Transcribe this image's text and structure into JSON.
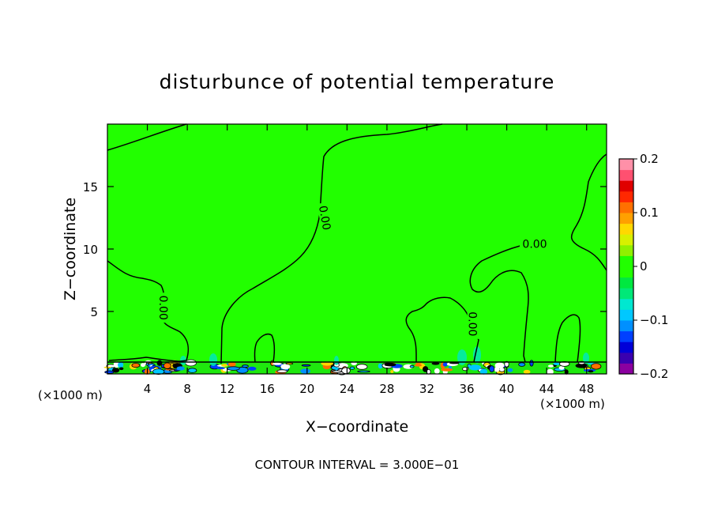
{
  "chart_data": {
    "type": "heatmap",
    "title": "disturbunce of potential temperature",
    "xlabel": "X−coordinate",
    "ylabel": "Z−coordinate",
    "x_unit_left": "(×1000 m)",
    "x_unit_right": "(×1000 m)",
    "x_ticks": [
      4,
      8,
      12,
      16,
      20,
      24,
      28,
      32,
      36,
      40,
      44,
      48
    ],
    "y_ticks": [
      5,
      10,
      15
    ],
    "xlim": [
      0,
      50
    ],
    "ylim": [
      0,
      20
    ],
    "colorbar": {
      "ticks": [
        0.2,
        0.1,
        0,
        -0.1,
        -0.2
      ],
      "tick_labels": [
        "0.2",
        "0.1",
        "0",
        "−0.1",
        "−0.2"
      ],
      "range": [
        -0.2,
        0.2
      ],
      "colors": [
        "#8b00a0",
        "#3a00b0",
        "#0000d8",
        "#0040ff",
        "#0090ff",
        "#00c8ff",
        "#00e8d0",
        "#00e878",
        "#00e840",
        "#22ff00",
        "#22ff00",
        "#90f000",
        "#d8f000",
        "#ffd800",
        "#ffa000",
        "#ff7000",
        "#ff2800",
        "#e00000",
        "#ff5070",
        "#ff90a8"
      ]
    },
    "contour_labels": [
      {
        "text": "0.00",
        "x": 21.8,
        "y": 12.5,
        "angle": 80
      },
      {
        "text": "0.00",
        "x": 42.8,
        "y": 10.4,
        "angle": 0
      },
      {
        "text": "0.00",
        "x": 5.6,
        "y": 5.3,
        "angle": 90
      },
      {
        "text": "0.00",
        "x": 36.6,
        "y": 4.0,
        "angle": 90
      }
    ],
    "background_value": 0,
    "footer": "CONTOUR INTERVAL = 3.000E−01"
  }
}
